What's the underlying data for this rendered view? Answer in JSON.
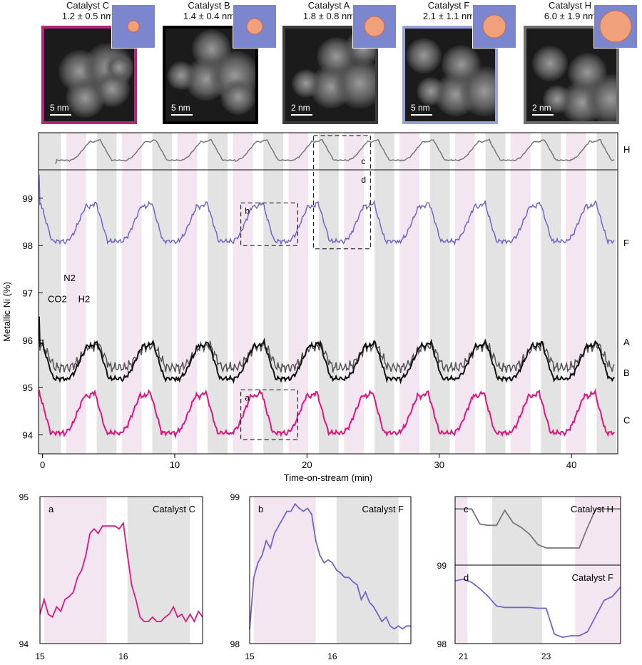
{
  "catalysts": [
    {
      "name": "Catalyst C",
      "size": "1.2 ± 0.5 nm",
      "scale": "5 nm",
      "border": "#b2267d"
    },
    {
      "name": "Catalyst B",
      "size": "1.4 ± 0.4 nm",
      "scale": "5 nm",
      "border": "#000000"
    },
    {
      "name": "Catalyst A",
      "size": "1.8 ± 0.8 nm",
      "scale": "2 nm",
      "border": "#3c3c3c"
    },
    {
      "name": "Catalyst F",
      "size": "2.1 ± 1.1 nm",
      "scale": "5 nm",
      "border": "#9aa3d8"
    },
    {
      "name": "Catalyst H",
      "size": "6.0 ± 1.9 nm",
      "scale": "2 nm",
      "border": "#6e6e6e"
    }
  ],
  "colors": {
    "C": "#e0157f",
    "B": "#111111",
    "A": "#555555",
    "F": "#6f66c8",
    "H": "#777777",
    "h2_band": "#f3e6f1",
    "co2_band": "#e3e3e3"
  },
  "chart_data": [
    {
      "type": "line",
      "title": "",
      "xlabel": "Time-on-stream (min)",
      "ylabel": "Metallic Ni (%)",
      "xlim": [
        -0.3,
        43.5
      ],
      "ylim": [
        93.6,
        99.6
      ],
      "xticks": [
        0,
        10,
        20,
        30,
        40
      ],
      "yticks": [
        94,
        95,
        96,
        97,
        98,
        99
      ],
      "gas_labels": {
        "N2": "N2",
        "CO2": "CO2",
        "H2": "H2"
      },
      "cycle_start": 1.5,
      "cycle_period": 4.2,
      "series": [
        {
          "name": "H",
          "label": "H",
          "base": 0,
          "amp": 0,
          "top": true
        },
        {
          "name": "F",
          "label": "F",
          "base": 98.05,
          "amp": 0.85
        },
        {
          "name": "A",
          "label": "A",
          "base": 95.4,
          "amp": 0.55
        },
        {
          "name": "B",
          "label": "B",
          "base": 95.15,
          "amp": 0.8
        },
        {
          "name": "C",
          "label": "C",
          "base": 94.0,
          "amp": 0.9
        }
      ],
      "boxes": [
        {
          "label": "a",
          "x": [
            15,
            19.3
          ],
          "y": [
            93.9,
            94.95
          ]
        },
        {
          "label": "b",
          "x": [
            15,
            19.3
          ],
          "y": [
            98.0,
            98.9
          ]
        },
        {
          "label": "c",
          "label2": "d",
          "x": [
            20.5,
            24.8
          ],
          "y": [
            97.9,
            99.6
          ]
        }
      ]
    },
    {
      "type": "line",
      "panel": "a",
      "title": "Catalyst C",
      "xticks": [
        15,
        16
      ],
      "yticks": [
        94,
        95
      ],
      "ylim": [
        94,
        95
      ],
      "x": [
        15,
        15.05,
        15.1,
        15.15,
        15.2,
        15.25,
        15.3,
        15.35,
        15.4,
        15.45,
        15.5,
        15.55,
        15.6,
        15.65,
        15.7,
        15.75,
        15.8,
        15.85,
        15.9,
        15.95,
        16.0,
        16.05,
        16.1,
        16.15,
        16.2,
        16.25,
        16.3,
        16.35,
        16.4,
        16.45,
        16.5,
        16.55,
        16.6,
        16.65,
        16.7,
        16.75,
        16.8,
        16.85,
        16.9,
        16.95
      ],
      "values": [
        94.2,
        94.3,
        94.2,
        94.18,
        94.25,
        94.22,
        94.3,
        94.32,
        94.35,
        94.45,
        94.5,
        94.6,
        94.75,
        94.78,
        94.75,
        94.8,
        94.8,
        94.8,
        94.8,
        94.78,
        94.82,
        94.6,
        94.4,
        94.3,
        94.18,
        94.15,
        94.15,
        94.18,
        94.15,
        94.15,
        94.18,
        94.2,
        94.25,
        94.18,
        94.2,
        94.15,
        94.2,
        94.15,
        94.22,
        94.18
      ]
    },
    {
      "type": "line",
      "panel": "b",
      "title": "Catalyst F",
      "xticks": [
        15,
        16
      ],
      "yticks": [
        98,
        99
      ],
      "ylim": [
        98,
        99
      ],
      "x": [
        15,
        15.05,
        15.1,
        15.15,
        15.2,
        15.25,
        15.3,
        15.35,
        15.4,
        15.45,
        15.5,
        15.55,
        15.6,
        15.65,
        15.7,
        15.75,
        15.8,
        15.85,
        15.9,
        15.95,
        16.0,
        16.05,
        16.1,
        16.15,
        16.2,
        16.25,
        16.3,
        16.35,
        16.4,
        16.45,
        16.5,
        16.55,
        16.6,
        16.65,
        16.7,
        16.75,
        16.8,
        16.85,
        16.9,
        16.95
      ],
      "values": [
        98.1,
        98.45,
        98.55,
        98.6,
        98.7,
        98.65,
        98.75,
        98.8,
        98.85,
        98.9,
        98.9,
        98.95,
        98.92,
        98.9,
        98.92,
        98.88,
        98.7,
        98.6,
        98.55,
        98.57,
        98.55,
        98.5,
        98.48,
        98.45,
        98.45,
        98.42,
        98.4,
        98.3,
        98.35,
        98.28,
        98.25,
        98.2,
        98.15,
        98.18,
        98.12,
        98.1,
        98.12,
        98.1,
        98.12,
        98.12
      ]
    },
    {
      "type": "line",
      "panel": "c",
      "title": "Catalyst H",
      "xticks": [
        21,
        23
      ],
      "yticks": [],
      "x": [
        20.8,
        21.0,
        21.2,
        21.4,
        21.6,
        21.8,
        22.0,
        22.2,
        22.4,
        22.6,
        22.8,
        23.0,
        23.2,
        23.4,
        23.6,
        23.8,
        24.0,
        24.2,
        24.4,
        24.6,
        24.8
      ],
      "values": [
        0.82,
        0.82,
        0.82,
        0.6,
        0.58,
        0.58,
        0.8,
        0.62,
        0.55,
        0.45,
        0.3,
        0.25,
        0.25,
        0.25,
        0.25,
        0.25,
        0.55,
        0.82,
        0.82,
        0.82,
        0.82
      ]
    },
    {
      "type": "line",
      "panel": "d",
      "title": "Catalyst F",
      "xticks": [
        21,
        23
      ],
      "yticks": [
        98,
        99
      ],
      "ylim": [
        98,
        99
      ],
      "x": [
        20.8,
        21.0,
        21.2,
        21.4,
        21.6,
        21.8,
        22.0,
        22.2,
        22.4,
        22.6,
        22.8,
        23.0,
        23.2,
        23.4,
        23.6,
        23.8,
        24.0,
        24.2,
        24.4,
        24.6,
        24.8
      ],
      "values": [
        98.8,
        98.82,
        98.78,
        98.7,
        98.6,
        98.48,
        98.46,
        98.46,
        98.46,
        98.46,
        98.45,
        98.45,
        98.12,
        98.08,
        98.1,
        98.1,
        98.15,
        98.35,
        98.55,
        98.6,
        98.72
      ]
    }
  ]
}
